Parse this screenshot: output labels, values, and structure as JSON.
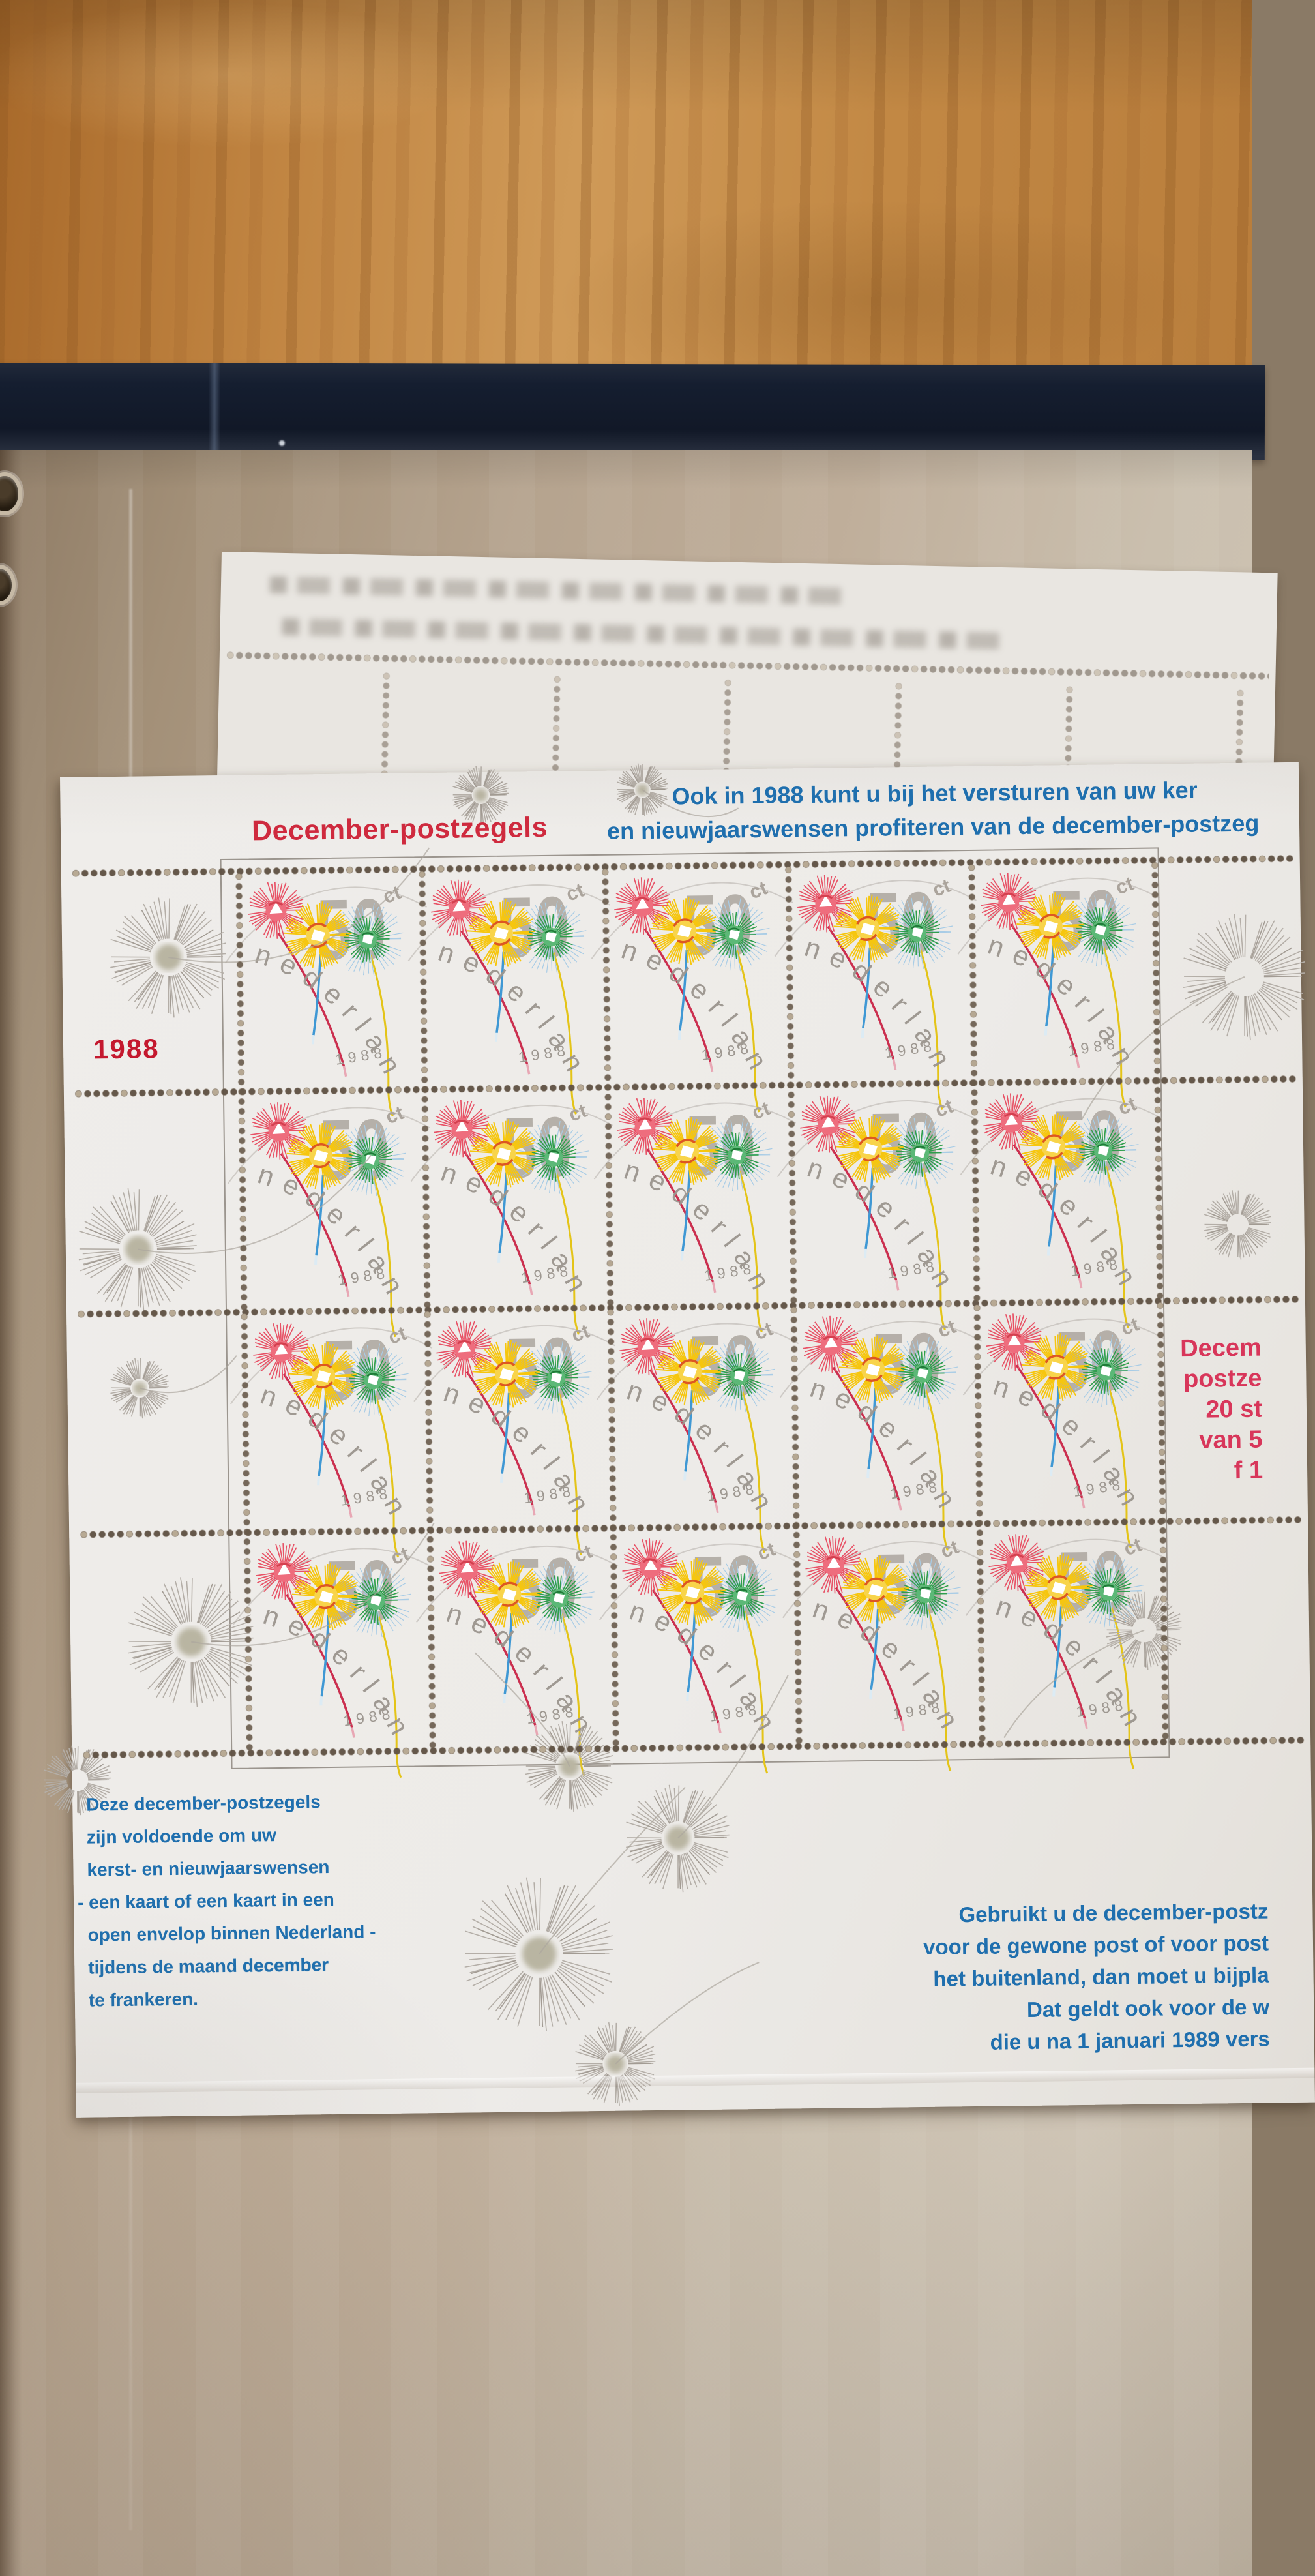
{
  "sheet": {
    "title": "December-postzegels",
    "year": "1988",
    "intro_lines": [
      "Ook in 1988 kunt u bij het versturen van uw ker",
      "en nieuwjaarswensen profiteren van de december-postzeg"
    ],
    "price_note_lines": [
      "Decem",
      "postze",
      "20 st",
      "van 5",
      "f 1"
    ],
    "usage_note_lines": [
      {
        "text": "Deze december-postzegels"
      },
      {
        "text": "zijn voldoende om uw"
      },
      {
        "text": "kerst- en nieuwjaarswensen"
      },
      {
        "text": "- een kaart of een kaart in een"
      },
      {
        "text": "open envelop binnen Nederland -"
      },
      {
        "text": "tijdens de maand ",
        "bold": "december"
      },
      {
        "text": "te frankeren."
      }
    ],
    "foreign_note_lines": [
      "Gebruikt u de december-postz",
      "voor de gewone post of voor post",
      "het buitenland, dan moet u bijpla",
      "Dat geldt ook voor de w",
      "die u na 1 januari 1989 vers"
    ],
    "stamp": {
      "denomination": "50",
      "unit": "ct",
      "country": "nederland",
      "year": "1988",
      "rows": 4,
      "cols": 5
    }
  },
  "colors": {
    "title_red": "#cf2a3e",
    "price_red": "#d8365a",
    "note_blue": "#1f6fae",
    "wood": "#c08441",
    "spine_navy": "#16202f",
    "page_beige": "#b7a591",
    "sheet_white": "#edebe8",
    "design_gray": "#a29b93",
    "perf_brown": "#625446",
    "burst_red": "#e85266",
    "burst_yellow": "#f6c60e",
    "burst_green": "#2f9e4c",
    "burst_blue_rays": "#a8cce6",
    "trail_blue": "#3f98d4",
    "trail_red": "#cb2f4f",
    "trail_yellow": "#e4c418"
  }
}
